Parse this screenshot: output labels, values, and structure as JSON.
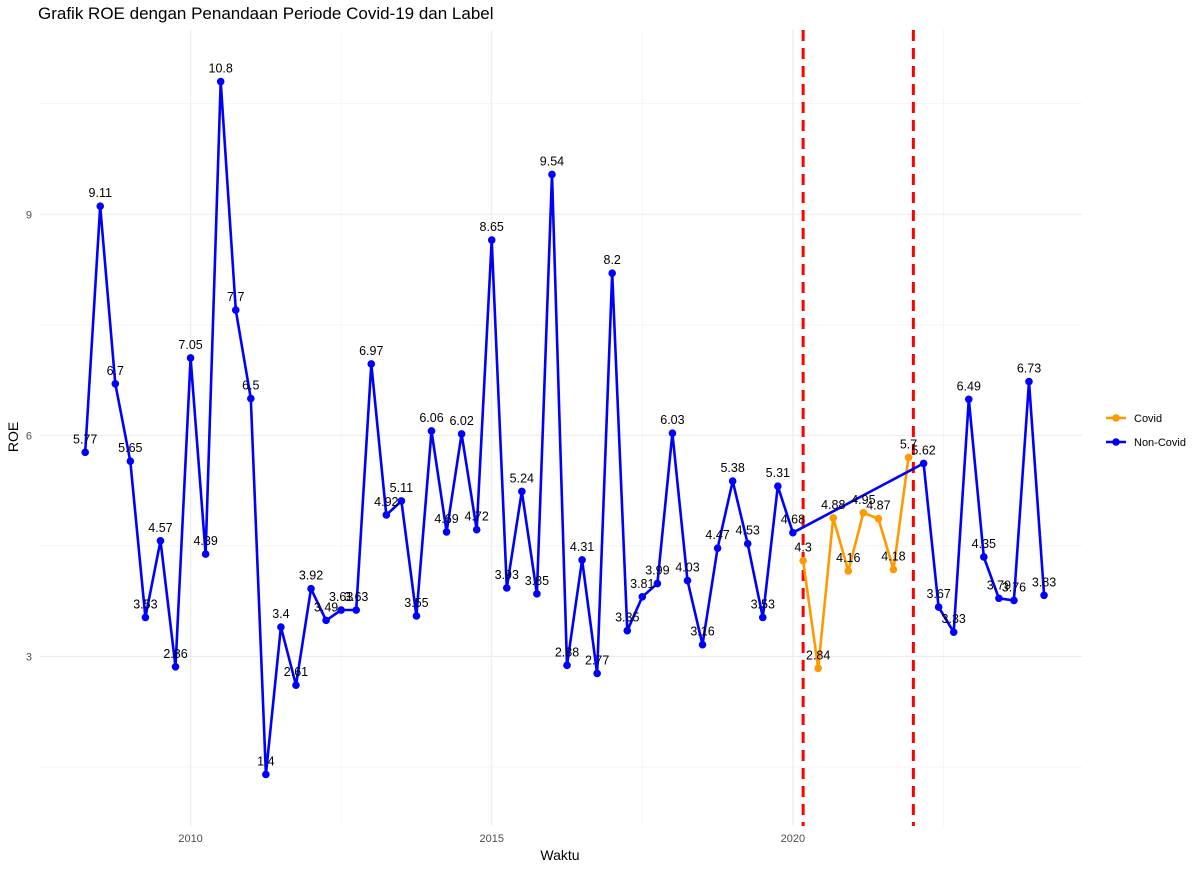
{
  "chart_data": {
    "type": "line",
    "title": "Grafik ROE dengan Penandaan Periode Covid-19 dan Label",
    "xlabel": "Waktu",
    "ylabel": "ROE",
    "xlim": [
      2007.5,
      2024.8
    ],
    "ylim": [
      0.7,
      11.5
    ],
    "x_ticks": [
      2010,
      2015,
      2020
    ],
    "y_ticks": [
      3,
      6,
      9
    ],
    "grid": true,
    "legend_position": "right",
    "colors": {
      "Covid": "#FF9900",
      "Non-Covid": "#0000FF",
      "marker_lines": "#FF0000"
    },
    "covid_period_markers": [
      2020.17,
      2022.0
    ],
    "series": [
      {
        "name": "Non-Covid",
        "x": [
          2008.25,
          2008.5,
          2008.75,
          2009.0,
          2009.25,
          2009.5,
          2009.75,
          2010.0,
          2010.25,
          2010.5,
          2010.75,
          2011.0,
          2011.25,
          2011.5,
          2011.75,
          2012.0,
          2012.25,
          2012.5,
          2012.75,
          2013.0,
          2013.25,
          2013.5,
          2013.75,
          2014.0,
          2014.25,
          2014.5,
          2014.75,
          2015.0,
          2015.25,
          2015.5,
          2015.75,
          2016.0,
          2016.25,
          2016.5,
          2016.75,
          2017.0,
          2017.25,
          2017.5,
          2017.75,
          2018.0,
          2018.25,
          2018.5,
          2018.75,
          2019.0,
          2019.25,
          2019.5,
          2019.75,
          2020.0,
          2022.17,
          2022.42,
          2022.67,
          2022.92,
          2023.17,
          2023.42,
          2023.67,
          2023.92,
          2024.17
        ],
        "values": [
          5.77,
          9.11,
          6.7,
          5.65,
          3.53,
          4.57,
          2.86,
          7.05,
          4.39,
          10.8,
          7.7,
          6.5,
          1.4,
          3.4,
          2.61,
          3.92,
          3.49,
          3.63,
          3.63,
          6.97,
          4.92,
          5.11,
          3.55,
          6.06,
          4.69,
          6.02,
          4.72,
          8.65,
          3.93,
          5.24,
          3.85,
          9.54,
          2.88,
          4.31,
          2.77,
          8.2,
          3.35,
          3.81,
          3.99,
          6.03,
          4.03,
          3.16,
          4.47,
          5.38,
          4.53,
          3.53,
          5.31,
          4.68,
          5.62,
          3.67,
          3.33,
          6.49,
          4.35,
          3.79,
          3.76,
          6.73,
          3.83
        ],
        "labels": [
          "5.77",
          "9.11",
          "6.7",
          "5.65",
          "3.53",
          "4.57",
          "2.86",
          "7.05",
          "4.39",
          "10.8",
          "7.7",
          "6.5",
          "1.4",
          "3.4",
          "2.61",
          "3.92",
          "3.49",
          "3.63",
          "3.63",
          "6.97",
          "4.92",
          "5.11",
          "3.55",
          "6.06",
          "4.69",
          "6.02",
          "4.72",
          "8.65",
          "3.93",
          "5.24",
          "3.85",
          "9.54",
          "2.88",
          "4.31",
          "2.77",
          "8.2",
          "3.35",
          "3.81",
          "3.99",
          "6.03",
          "4.03",
          "3.16",
          "4.47",
          "5.38",
          "4.53",
          "3.53",
          "5.31",
          "4.68",
          "5.62",
          "3.67",
          "3.33",
          "6.49",
          "4.35",
          "3.79",
          "3.76",
          "6.73",
          "3.83"
        ]
      },
      {
        "name": "Covid",
        "x": [
          2020.17,
          2020.42,
          2020.67,
          2020.92,
          2021.17,
          2021.42,
          2021.67,
          2021.92
        ],
        "values": [
          4.3,
          2.84,
          4.88,
          4.16,
          4.95,
          4.87,
          4.18,
          5.7
        ],
        "labels": [
          "4.3",
          "2.84",
          "4.88",
          "4.16",
          "4.95",
          "4.87",
          "4.18",
          "5.7"
        ]
      }
    ]
  }
}
